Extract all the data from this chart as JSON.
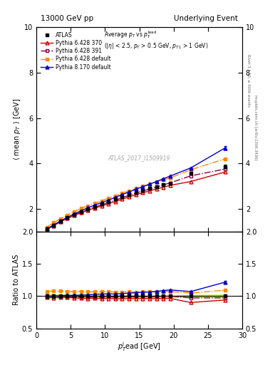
{
  "title_left": "13000 GeV pp",
  "title_right": "Underlying Event",
  "right_label_top": "Rivet 3.1.10, ≥ 400k events",
  "right_label_bot": "mcplots.cern.ch [arXiv:1306.3436]",
  "watermark": "ATLAS_2017_I1509919",
  "xlim": [
    0,
    30
  ],
  "ylim_main": [
    1,
    10
  ],
  "ylim_ratio": [
    0.5,
    2
  ],
  "atlas_x": [
    1.5,
    2.5,
    3.5,
    4.5,
    5.5,
    6.5,
    7.5,
    8.5,
    9.5,
    10.5,
    11.5,
    12.5,
    13.5,
    14.5,
    15.5,
    16.5,
    17.5,
    18.5,
    19.5,
    22.5,
    27.5
  ],
  "atlas_y": [
    1.1,
    1.28,
    1.45,
    1.6,
    1.75,
    1.88,
    2.0,
    2.1,
    2.2,
    2.3,
    2.42,
    2.52,
    2.62,
    2.72,
    2.8,
    2.9,
    2.98,
    3.06,
    3.14,
    3.55,
    3.85
  ],
  "atlas_yerr": [
    0.03,
    0.03,
    0.03,
    0.03,
    0.03,
    0.03,
    0.03,
    0.03,
    0.03,
    0.03,
    0.03,
    0.03,
    0.03,
    0.03,
    0.03,
    0.03,
    0.03,
    0.03,
    0.03,
    0.05,
    0.08
  ],
  "p6_370_y": [
    1.08,
    1.25,
    1.42,
    1.57,
    1.7,
    1.82,
    1.93,
    2.03,
    2.12,
    2.22,
    2.32,
    2.42,
    2.52,
    2.62,
    2.7,
    2.79,
    2.87,
    2.95,
    3.03,
    3.2,
    3.62
  ],
  "p6_391_y": [
    1.1,
    1.27,
    1.44,
    1.59,
    1.73,
    1.85,
    1.97,
    2.07,
    2.17,
    2.28,
    2.38,
    2.49,
    2.59,
    2.69,
    2.78,
    2.87,
    2.96,
    3.05,
    3.14,
    3.45,
    3.75
  ],
  "p6_def_y": [
    1.18,
    1.38,
    1.56,
    1.72,
    1.87,
    2.01,
    2.13,
    2.24,
    2.35,
    2.46,
    2.57,
    2.68,
    2.79,
    2.89,
    2.99,
    3.09,
    3.18,
    3.27,
    3.36,
    3.72,
    4.2
  ],
  "p8_def_y": [
    1.1,
    1.28,
    1.46,
    1.62,
    1.77,
    1.91,
    2.04,
    2.16,
    2.27,
    2.38,
    2.5,
    2.62,
    2.74,
    2.86,
    2.97,
    3.08,
    3.2,
    3.32,
    3.44,
    3.8,
    4.68
  ],
  "p8_def_yerr": [
    0.02,
    0.02,
    0.02,
    0.02,
    0.02,
    0.02,
    0.02,
    0.02,
    0.02,
    0.02,
    0.02,
    0.02,
    0.02,
    0.02,
    0.02,
    0.02,
    0.02,
    0.02,
    0.02,
    0.03,
    0.07
  ],
  "color_atlas": "#000000",
  "color_p6_370": "#cc0000",
  "color_p6_391": "#880044",
  "color_p6_def": "#ff8800",
  "color_p8_def": "#0000cc",
  "atlas_band_color": "#bbee00",
  "yticks_main": [
    2,
    4,
    6,
    8,
    10
  ],
  "yticks_ratio": [
    0.5,
    1.0,
    1.5,
    2.0
  ]
}
